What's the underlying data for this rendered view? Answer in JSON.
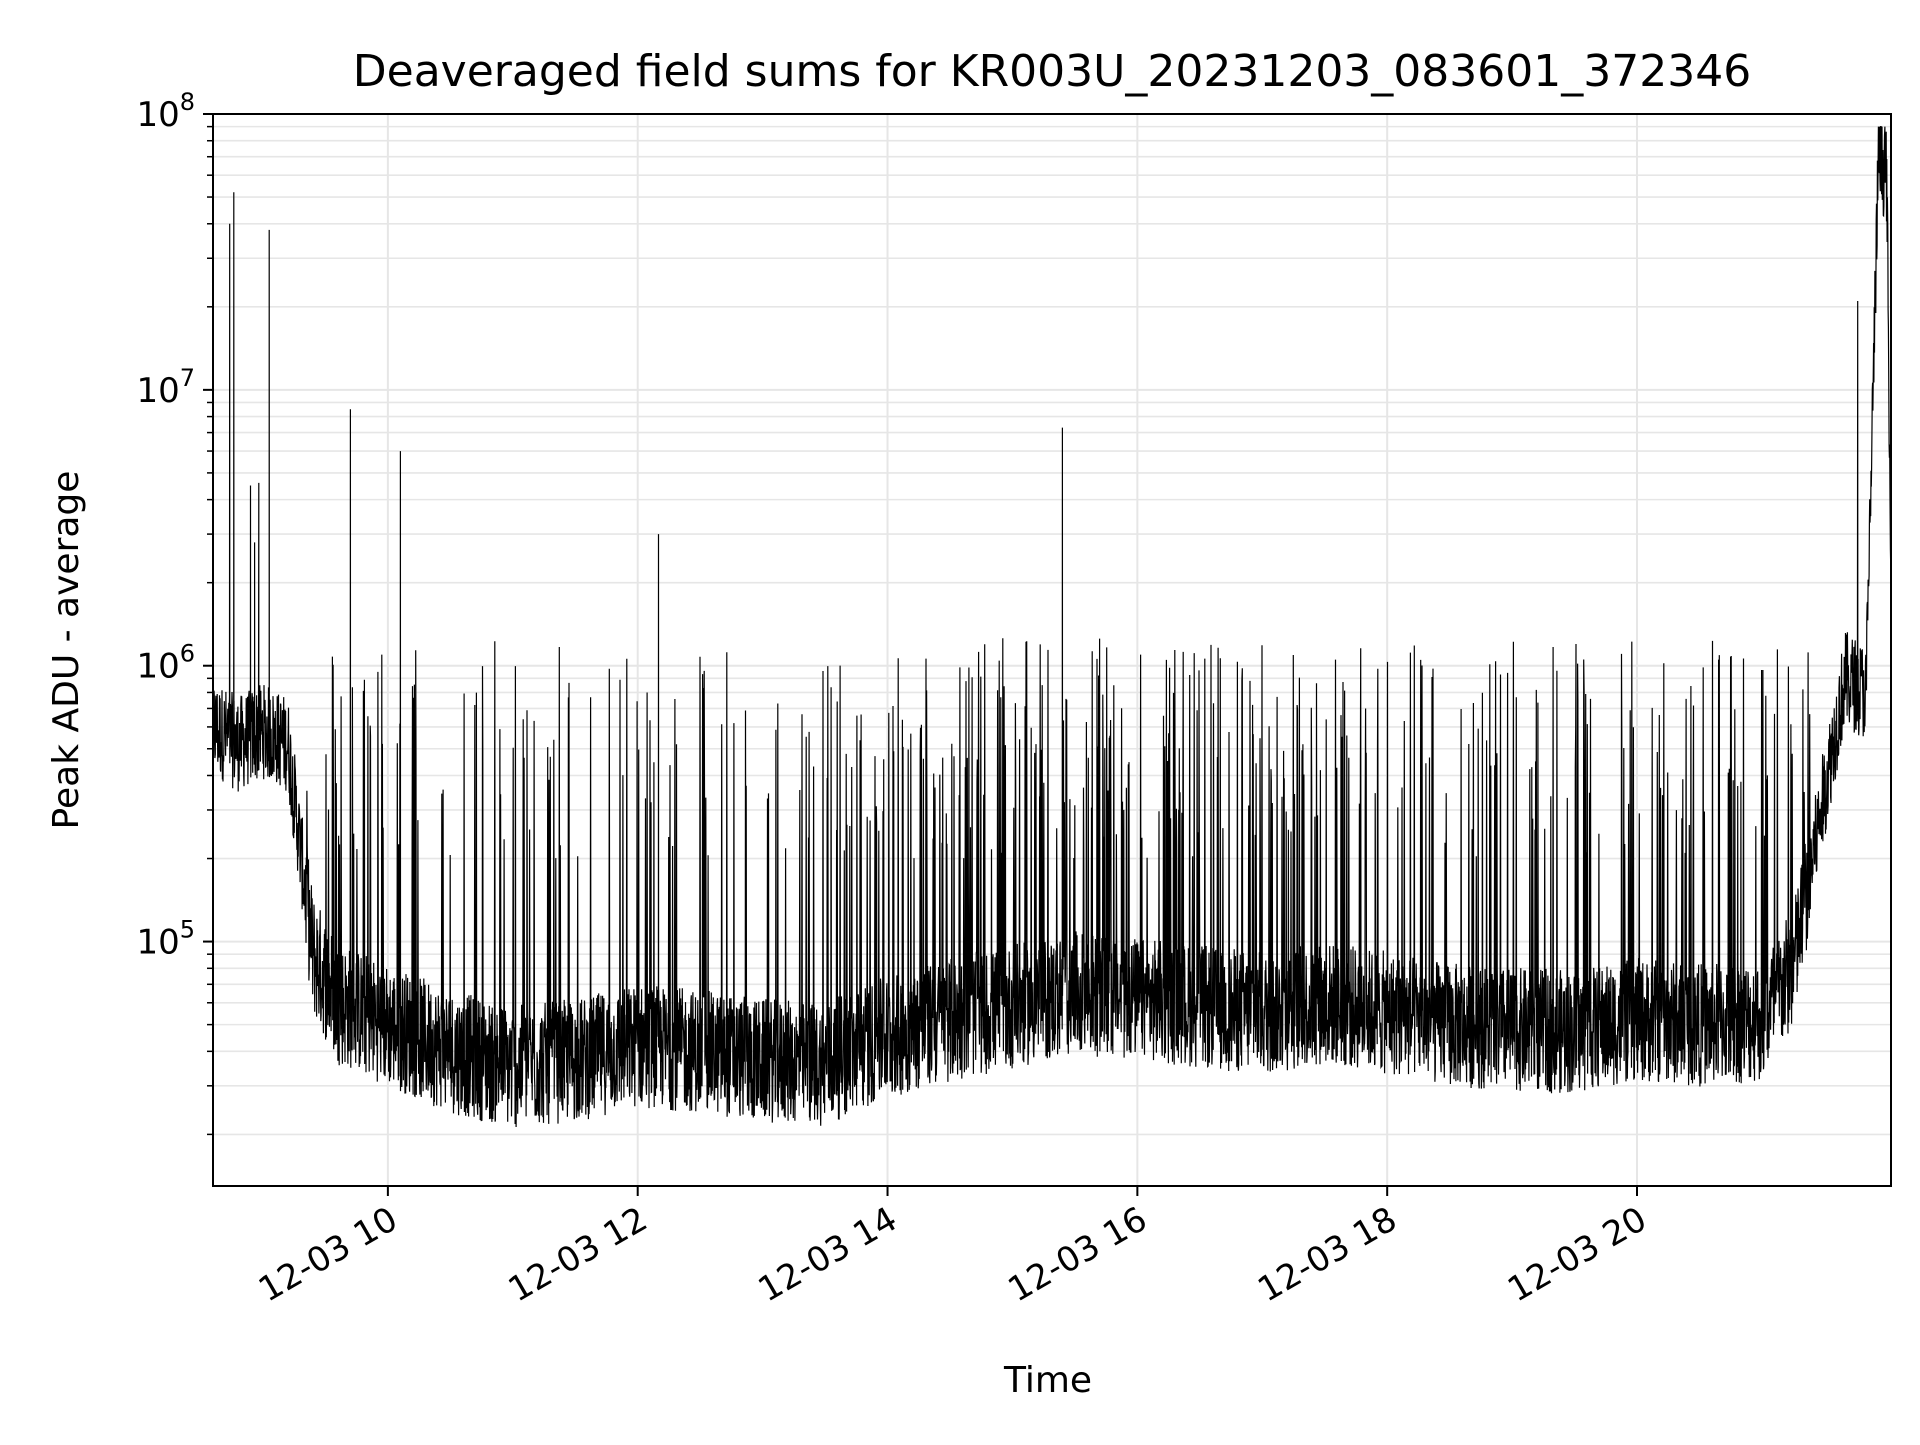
{
  "chart_data": {
    "type": "line",
    "title": "Deaveraged field sums for KR003U_20231203_083601_372346",
    "xlabel": "Time",
    "ylabel": "Peak ADU - average",
    "y_scale": "log",
    "ylim": [
      13000,
      100000000
    ],
    "xlim": [
      "2023-12-03 08:36",
      "2023-12-03 22:02"
    ],
    "grid": true,
    "y_ticks": [
      {
        "value": 100000,
        "base": "10",
        "exp": "5"
      },
      {
        "value": 1000000,
        "base": "10",
        "exp": "6"
      },
      {
        "value": 10000000,
        "base": "10",
        "exp": "7"
      },
      {
        "value": 100000000,
        "base": "10",
        "exp": "8"
      }
    ],
    "x_ticks": [
      {
        "value": "2023-12-03 10:00",
        "label": "12-03 10"
      },
      {
        "value": "2023-12-03 12:00",
        "label": "12-03 12"
      },
      {
        "value": "2023-12-03 14:00",
        "label": "12-03 14"
      },
      {
        "value": "2023-12-03 16:00",
        "label": "12-03 16"
      },
      {
        "value": "2023-12-03 18:00",
        "label": "12-03 18"
      },
      {
        "value": "2023-12-03 20:00",
        "label": "12-03 20"
      }
    ],
    "line_color": "#000000",
    "series": [
      {
        "baseline": [
          {
            "x": "2023-12-03 08:36",
            "y": 600000
          },
          {
            "x": "2023-12-03 08:48",
            "y": 520000
          },
          {
            "x": "2023-12-03 09:00",
            "y": 580000
          },
          {
            "x": "2023-12-03 09:12",
            "y": 520000
          },
          {
            "x": "2023-12-03 09:24",
            "y": 90000
          },
          {
            "x": "2023-12-03 09:36",
            "y": 60000
          },
          {
            "x": "2023-12-03 09:48",
            "y": 55000
          },
          {
            "x": "2023-12-03 10:00",
            "y": 50000
          },
          {
            "x": "2023-12-03 10:30",
            "y": 40000
          },
          {
            "x": "2023-12-03 11:00",
            "y": 35000
          },
          {
            "x": "2023-12-03 11:30",
            "y": 37000
          },
          {
            "x": "2023-12-03 12:00",
            "y": 42000
          },
          {
            "x": "2023-12-03 12:30",
            "y": 40000
          },
          {
            "x": "2023-12-03 13:00",
            "y": 37000
          },
          {
            "x": "2023-12-03 13:30",
            "y": 36000
          },
          {
            "x": "2023-12-03 14:00",
            "y": 45000
          },
          {
            "x": "2023-12-03 14:30",
            "y": 52000
          },
          {
            "x": "2023-12-03 15:00",
            "y": 58000
          },
          {
            "x": "2023-12-03 15:30",
            "y": 65000
          },
          {
            "x": "2023-12-03 16:00",
            "y": 62000
          },
          {
            "x": "2023-12-03 16:30",
            "y": 58000
          },
          {
            "x": "2023-12-03 17:00",
            "y": 55000
          },
          {
            "x": "2023-12-03 17:30",
            "y": 60000
          },
          {
            "x": "2023-12-03 18:00",
            "y": 55000
          },
          {
            "x": "2023-12-03 18:30",
            "y": 50000
          },
          {
            "x": "2023-12-03 19:00",
            "y": 48000
          },
          {
            "x": "2023-12-03 19:30",
            "y": 47000
          },
          {
            "x": "2023-12-03 20:00",
            "y": 52000
          },
          {
            "x": "2023-12-03 20:30",
            "y": 50000
          },
          {
            "x": "2023-12-03 21:00",
            "y": 52000
          },
          {
            "x": "2023-12-03 21:15",
            "y": 80000
          },
          {
            "x": "2023-12-03 21:30",
            "y": 350000
          },
          {
            "x": "2023-12-03 21:40",
            "y": 900000
          },
          {
            "x": "2023-12-03 21:50",
            "y": 800000
          },
          {
            "x": "2023-12-03 21:56",
            "y": 70000000
          },
          {
            "x": "2023-12-03 22:00",
            "y": 60000000
          },
          {
            "x": "2023-12-03 22:02",
            "y": 1500000
          }
        ],
        "spikes": [
          {
            "x": "2023-12-03 08:44",
            "y": 40000000
          },
          {
            "x": "2023-12-03 08:46",
            "y": 52000000
          },
          {
            "x": "2023-12-03 08:54",
            "y": 4500000
          },
          {
            "x": "2023-12-03 08:56",
            "y": 2800000
          },
          {
            "x": "2023-12-03 08:58",
            "y": 4600000
          },
          {
            "x": "2023-12-03 09:03",
            "y": 38000000
          },
          {
            "x": "2023-12-03 09:42",
            "y": 8500000
          },
          {
            "x": "2023-12-03 10:06",
            "y": 6000000
          },
          {
            "x": "2023-12-03 12:10",
            "y": 3000000
          },
          {
            "x": "2023-12-03 15:24",
            "y": 7300000
          },
          {
            "x": "2023-12-03 21:46",
            "y": 21000000
          }
        ]
      }
    ]
  }
}
